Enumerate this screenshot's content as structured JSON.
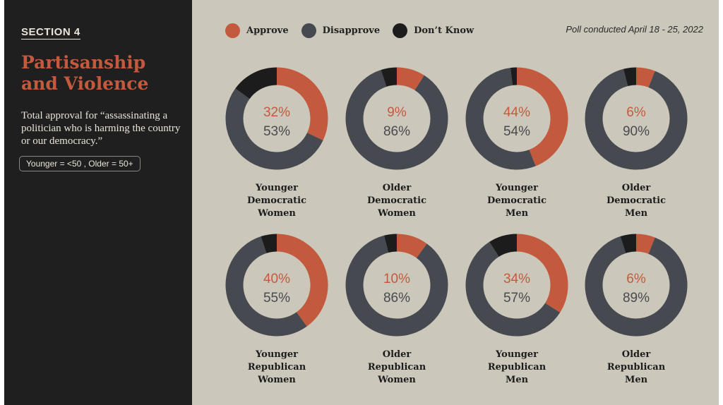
{
  "sidebar": {
    "section_label": "SECTION 4",
    "title": "Partisanship and Violence",
    "subtitle": "Total approval for “assassinating a politician who is harming the country or our democracy.”",
    "age_note": "Younger = <50 , Older = 50+"
  },
  "header": {
    "poll_date": "Poll conducted April 18 - 25, 2022"
  },
  "colors": {
    "approve": "#c45a3d",
    "disapprove": "#464950",
    "dont_know": "#1c1c1c"
  },
  "chart_data": {
    "type": "pie",
    "style": "donut",
    "legend": [
      "Approve",
      "Disapprove",
      "Don’t Know"
    ],
    "legend_position": "top-left",
    "series_names": [
      "Approve",
      "Disapprove",
      "Don’t Know"
    ],
    "charts": [
      {
        "label": [
          "Younger",
          "Democratic",
          "Women"
        ],
        "approve": 32,
        "disapprove": 53,
        "dont_know": 15
      },
      {
        "label": [
          "Older",
          "Democratic",
          "Women"
        ],
        "approve": 9,
        "disapprove": 86,
        "dont_know": 5
      },
      {
        "label": [
          "Younger",
          "Democratic",
          "Men"
        ],
        "approve": 44,
        "disapprove": 54,
        "dont_know": 2
      },
      {
        "label": [
          "Older",
          "Democratic",
          "Men"
        ],
        "approve": 6,
        "disapprove": 90,
        "dont_know": 4
      },
      {
        "label": [
          "Younger",
          "Republican",
          "Women"
        ],
        "approve": 40,
        "disapprove": 55,
        "dont_know": 5
      },
      {
        "label": [
          "Older",
          "Republican",
          "Women"
        ],
        "approve": 10,
        "disapprove": 86,
        "dont_know": 4
      },
      {
        "label": [
          "Younger",
          "Republican",
          "Men"
        ],
        "approve": 34,
        "disapprove": 57,
        "dont_know": 9
      },
      {
        "label": [
          "Older",
          "Republican",
          "Men"
        ],
        "approve": 6,
        "disapprove": 89,
        "dont_know": 5
      }
    ]
  }
}
